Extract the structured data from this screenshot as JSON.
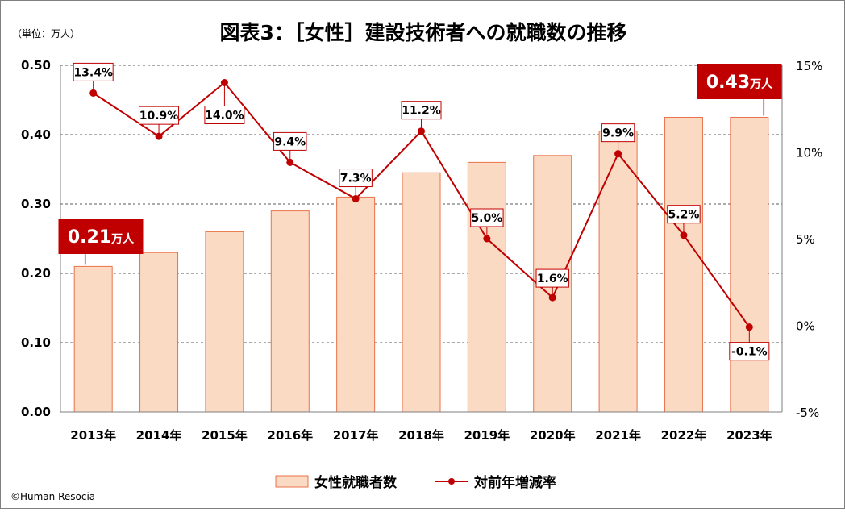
{
  "chart_data": {
    "type": "bar+line",
    "title": "図表3：［女性］建設技術者への就職数の推移",
    "unit_label": "（単位：万人）",
    "categories": [
      "2013年",
      "2014年",
      "2015年",
      "2016年",
      "2017年",
      "2018年",
      "2019年",
      "2020年",
      "2021年",
      "2022年",
      "2023年"
    ],
    "left_axis": {
      "range": [
        0,
        0.5
      ],
      "ticks": [
        "0.00",
        "0.10",
        "0.20",
        "0.30",
        "0.40",
        "0.50"
      ]
    },
    "right_axis": {
      "range": [
        -5,
        15
      ],
      "ticks": [
        "-5%",
        "0%",
        "5%",
        "10%",
        "15%"
      ]
    },
    "series": [
      {
        "name": "女性就職者数",
        "kind": "bar",
        "values": [
          0.21,
          0.23,
          0.26,
          0.29,
          0.31,
          0.345,
          0.36,
          0.37,
          0.405,
          0.425,
          0.425
        ]
      },
      {
        "name": "対前年増減率",
        "kind": "line",
        "values": [
          13.4,
          10.9,
          14.0,
          9.4,
          7.3,
          11.2,
          5.0,
          1.6,
          9.9,
          5.2,
          -0.1
        ],
        "labels": [
          "13.4%",
          "10.9%",
          "14.0%",
          "9.4%",
          "7.3%",
          "11.2%",
          "5.0%",
          "1.6%",
          "9.9%",
          "5.2%",
          "-0.1%"
        ]
      }
    ],
    "callouts": [
      {
        "value": "0.21",
        "unit": "万人",
        "category": "2013年"
      },
      {
        "value": "0.43",
        "unit": "万人",
        "category": "2023年"
      }
    ],
    "legend": [
      "女性就職者数",
      "対前年増減率"
    ],
    "legend_position": "bottom",
    "grid": true
  },
  "colors": {
    "bar_fill": "#fbdac4",
    "bar_stroke": "#e8734a",
    "line": "#c00000",
    "callout": "#c00000",
    "grid": "#595959",
    "label_box_stroke": "#c00000"
  },
  "copyright": "©Human Resocia"
}
